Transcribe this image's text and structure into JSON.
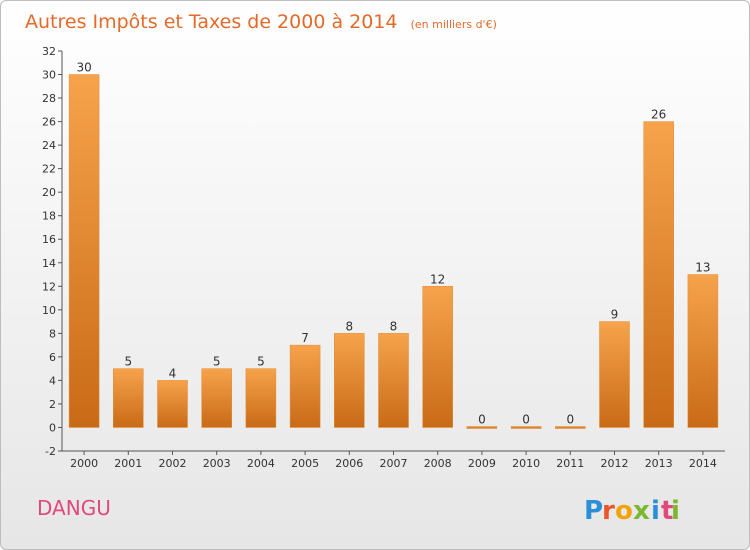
{
  "commune": "DANGU",
  "logo_text": "Proxiti",
  "chart_data": {
    "type": "bar",
    "title": "Autres Impôts et Taxes de 2000 à 2014",
    "subtitle": "(en milliers d'€)",
    "categories": [
      "2000",
      "2001",
      "2002",
      "2003",
      "2004",
      "2005",
      "2006",
      "2007",
      "2008",
      "2009",
      "2010",
      "2011",
      "2012",
      "2013",
      "2014"
    ],
    "values": [
      30,
      5,
      4,
      5,
      5,
      7,
      8,
      8,
      12,
      0,
      0,
      0,
      9,
      26,
      13
    ],
    "ylim": [
      -2,
      32
    ],
    "yticks": [
      -2,
      0,
      2,
      4,
      6,
      8,
      10,
      12,
      14,
      16,
      18,
      20,
      22,
      24,
      26,
      28,
      30,
      32
    ],
    "grid": false,
    "colors": {
      "bar_top": "#f6a34c",
      "bar_bottom": "#c96a16",
      "title": "#e46a2a",
      "commune": "#e04a7a"
    }
  }
}
